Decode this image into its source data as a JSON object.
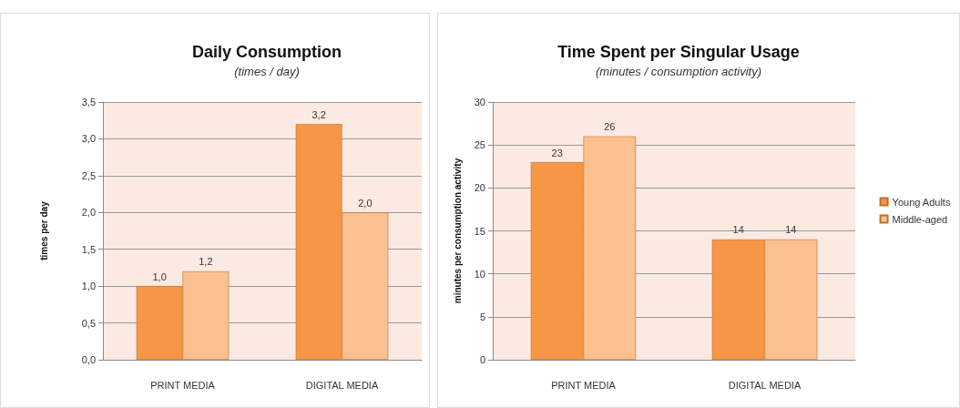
{
  "chart_data": [
    {
      "type": "bar",
      "title": "Daily Consumption",
      "subtitle": "(times / day)",
      "ylabel": "times per day",
      "categories": [
        "PRINT MEDIA",
        "DIGITAL MEDIA"
      ],
      "series": [
        {
          "color": "#f79646",
          "values": [
            1.0,
            3.2
          ],
          "value_labels": [
            "1,0",
            "3,2"
          ]
        },
        {
          "color": "#fac090",
          "values": [
            1.2,
            2.0
          ],
          "value_labels": [
            "1,2",
            "2,0"
          ]
        }
      ],
      "ylim": [
        0,
        3.5
      ],
      "yticks": [
        {
          "value": 0,
          "label": "0,0"
        },
        {
          "value": 0.5,
          "label": "0,5"
        },
        {
          "value": 1,
          "label": "1,0"
        },
        {
          "value": 1.5,
          "label": "1,5"
        },
        {
          "value": 2,
          "label": "2,0"
        },
        {
          "value": 2.5,
          "label": "2,5"
        },
        {
          "value": 3,
          "label": "3,0"
        },
        {
          "value": 3.5,
          "label": "3,5"
        }
      ],
      "grid": "y",
      "legend": false
    },
    {
      "type": "bar",
      "title": "Time Spent per Singular Usage",
      "subtitle": "(minutes / consumption activity)",
      "ylabel": "minutes per consumption activity",
      "categories": [
        "PRINT MEDIA",
        "DIGITAL MEDIA"
      ],
      "series": [
        {
          "name": "Young Adults",
          "color": "#f79646",
          "values": [
            23,
            14
          ]
        },
        {
          "name": "Middle-aged",
          "color": "#fac090",
          "values": [
            26,
            14
          ]
        }
      ],
      "ylim": [
        0,
        30
      ],
      "yticks": [
        0,
        5,
        10,
        15,
        20,
        25,
        30
      ],
      "grid": "y",
      "data_labels": true,
      "legend": "right"
    }
  ]
}
